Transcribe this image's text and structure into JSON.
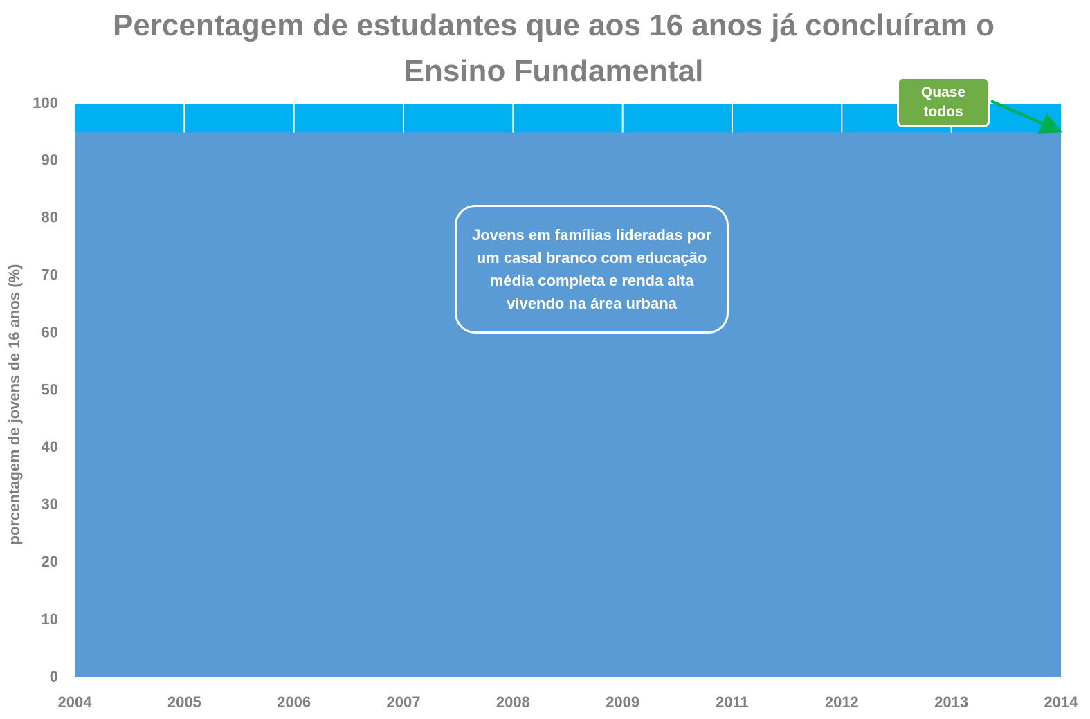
{
  "chart_data": {
    "type": "area",
    "title": "Percentagem de estudantes que aos 16 anos já concluíram o Ensino Fundamental",
    "y_label": "porcentagem de jovens de 16 anos (%)",
    "categories": [
      "2004",
      "2005",
      "2006",
      "2007",
      "2008",
      "2009",
      "2011",
      "2012",
      "2013",
      "2014"
    ],
    "values": [
      95,
      95,
      95,
      95,
      95,
      95,
      95,
      95,
      95,
      95
    ],
    "color": "#5b9bd5",
    "plot_background": "#00b0f0",
    "ylim": [
      0,
      100
    ],
    "yticks": [
      0,
      10,
      20,
      30,
      40,
      50,
      60,
      70,
      80,
      90,
      100
    ],
    "grid": false,
    "annotations": [
      {
        "text": "Jovens em famílias lideradas por um casal branco com educação média completa e renda alta vivendo na área urbana"
      },
      {
        "text": "Quase todos"
      }
    ]
  }
}
